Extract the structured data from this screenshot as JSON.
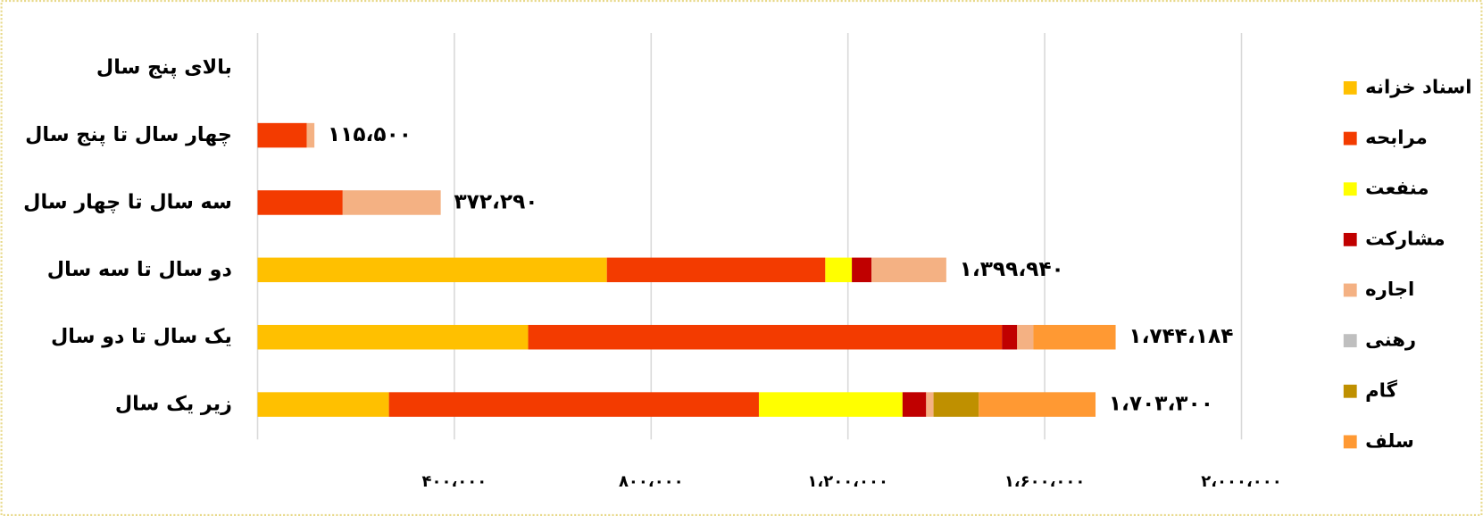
{
  "chart_data": {
    "type": "stacked_bar_horizontal",
    "categories": [
      "بالای پنج سال",
      "چهار سال تا پنج سال",
      "سه سال تا چهار سال",
      "دو سال تا سه سال",
      "یک سال تا دو سال",
      "زیر یک سال"
    ],
    "series": [
      {
        "name": "اسناد خزانه",
        "color": "#FFC000",
        "values": [
          null,
          null,
          null,
          710000,
          550000,
          267000
        ]
      },
      {
        "name": "مرابحه",
        "color": "#F33B00",
        "values": [
          null,
          100000,
          173000,
          444000,
          963000,
          752000
        ]
      },
      {
        "name": "منفعت",
        "color": "#FFFF00",
        "values": [
          null,
          null,
          null,
          54000,
          null,
          292000
        ]
      },
      {
        "name": "مشارکت",
        "color": "#C00000",
        "values": [
          null,
          null,
          null,
          40000,
          31000,
          48000
        ]
      },
      {
        "name": "اجاره",
        "color": "#F4B183",
        "values": [
          null,
          15500,
          199290,
          151940,
          33000,
          15000
        ]
      },
      {
        "name": "رهنی",
        "color": "#BFBFBF",
        "values": [
          null,
          null,
          null,
          null,
          null,
          null
        ]
      },
      {
        "name": "گام",
        "color": "#BF9000",
        "values": [
          null,
          null,
          null,
          null,
          null,
          92000
        ]
      },
      {
        "name": "سلف",
        "color": "#FF9933",
        "values": [
          null,
          null,
          null,
          null,
          167184,
          237300
        ]
      }
    ],
    "totals": [
      null,
      115500,
      372290,
      1399940,
      1744184,
      1703300
    ],
    "value_labels": [
      null,
      "۱۱۵،۵۰۰",
      "۳۷۲،۲۹۰",
      "۱،۳۹۹،۹۴۰",
      "۱،۷۴۴،۱۸۴",
      "۱،۷۰۳،۳۰۰"
    ],
    "xlim": [
      0,
      2000000
    ],
    "xticks": [
      {
        "value": 400000,
        "label": "۴۰۰،۰۰۰"
      },
      {
        "value": 800000,
        "label": "۸۰۰،۰۰۰"
      },
      {
        "value": 1200000,
        "label": "۱،۲۰۰،۰۰۰"
      },
      {
        "value": 1600000,
        "label": "۱،۶۰۰،۰۰۰"
      },
      {
        "value": 2000000,
        "label": "۲،۰۰۰،۰۰۰"
      }
    ],
    "grid": true,
    "legend": "right"
  }
}
